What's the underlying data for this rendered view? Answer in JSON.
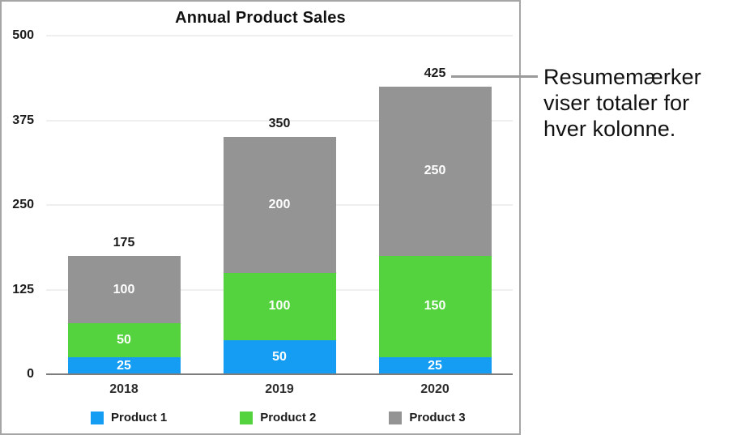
{
  "chart_data": {
    "type": "bar",
    "stacked": true,
    "title": "Annual Product Sales",
    "categories": [
      "2018",
      "2019",
      "2020"
    ],
    "series": [
      {
        "name": "Product 1",
        "color": "#149df2",
        "values": [
          25,
          50,
          25
        ]
      },
      {
        "name": "Product 2",
        "color": "#55d33e",
        "values": [
          50,
          100,
          150
        ]
      },
      {
        "name": "Product 3",
        "color": "#949494",
        "values": [
          100,
          200,
          250
        ]
      }
    ],
    "totals": [
      175,
      350,
      425
    ],
    "yticks": [
      0,
      125,
      250,
      375,
      500
    ],
    "ylim": [
      0,
      500
    ],
    "grid": true,
    "legend_position": "bottom",
    "colors": {
      "gridline": "#efefef",
      "axis_line": "#7d7d7d",
      "panel_border": "#a5a5a5",
      "callout_line": "#9a9a9a"
    }
  },
  "callout": {
    "text": "Resumemærker viser totaler for hver kolonne."
  }
}
